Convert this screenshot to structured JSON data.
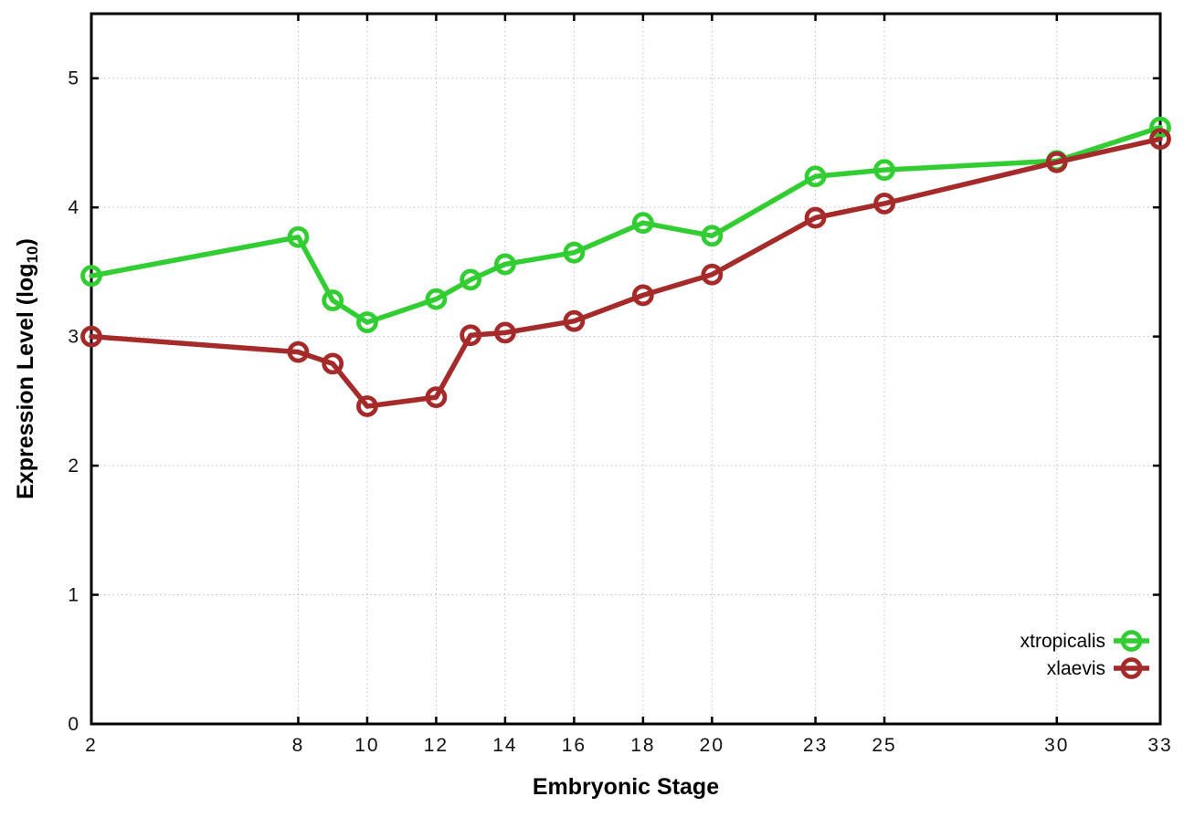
{
  "chart_data": {
    "type": "line",
    "title": "",
    "xlabel": "Embryonic Stage",
    "ylabel": "Expression Level (log10)",
    "ylabel_rich": {
      "pre": "Expression Level (log",
      "sub": "10",
      "post": ")"
    },
    "x": [
      2,
      8,
      9,
      10,
      12,
      13,
      14,
      16,
      18,
      20,
      23,
      25,
      30,
      33
    ],
    "series": [
      {
        "name": "xtropicalis",
        "color": "#32cd32",
        "values": [
          3.47,
          3.77,
          3.28,
          3.11,
          3.29,
          3.44,
          3.56,
          3.65,
          3.88,
          3.78,
          4.24,
          4.29,
          4.36,
          4.62
        ]
      },
      {
        "name": "xlaevis",
        "color": "#a52a2a",
        "values": [
          3.0,
          2.88,
          2.79,
          2.46,
          2.53,
          3.01,
          3.03,
          3.12,
          3.32,
          3.48,
          3.92,
          4.03,
          4.35,
          4.53
        ]
      }
    ],
    "xlim": [
      2,
      33
    ],
    "ylim": [
      0,
      5.5
    ],
    "xticks": [
      2,
      8,
      10,
      12,
      14,
      16,
      18,
      20,
      23,
      25,
      30,
      33
    ],
    "yticks": [
      0,
      1,
      2,
      3,
      4,
      5
    ],
    "grid": true,
    "grid_style": "dotted",
    "marker": "open-circle",
    "legend": {
      "position": "inside-bottom-right",
      "entries": [
        "xtropicalis",
        "xlaevis"
      ]
    },
    "colors": {
      "grid": "#bdbdbd",
      "axis": "#000000",
      "background": "#ffffff",
      "tick_text": "#111111"
    }
  }
}
